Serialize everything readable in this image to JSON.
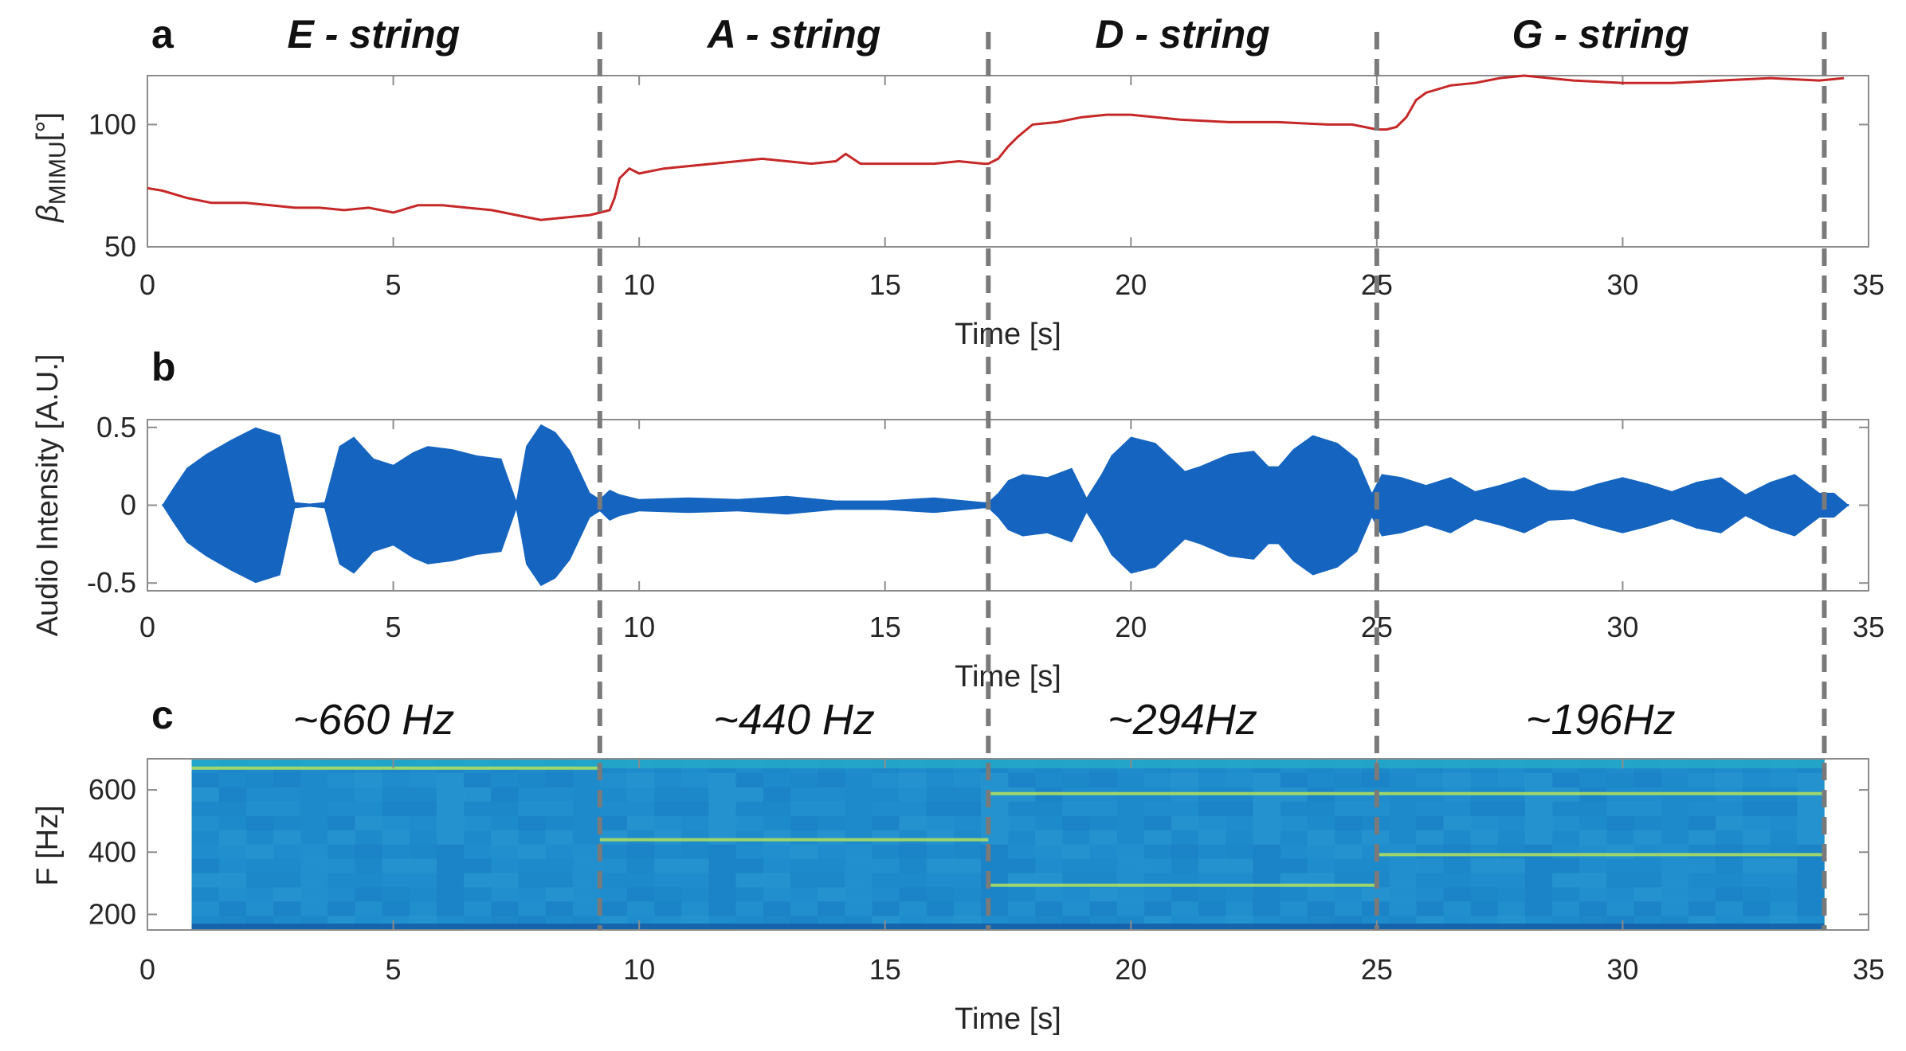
{
  "figure": {
    "section_labels": [
      "E - string",
      "A - string",
      "D - string",
      "G - string"
    ],
    "frequency_labels": [
      "~660 Hz",
      "~440 Hz",
      "~294Hz",
      "~196Hz"
    ],
    "boundaries_s": [
      9.2,
      17.1,
      25.0,
      34.1
    ],
    "boundary_color": "#7a7a7a"
  },
  "chart_data": [
    {
      "panel": "a",
      "type": "line",
      "xlabel": "Time [s]",
      "ylabel": "βMIMU[°]",
      "ylabel_parts": {
        "symbol": "β",
        "subscript": "MIMU",
        "unit": "[°]"
      },
      "xlim": [
        0,
        35
      ],
      "ylim": [
        50,
        120
      ],
      "xticks": [
        0,
        5,
        10,
        15,
        20,
        25,
        30,
        35
      ],
      "yticks": [
        50,
        100
      ],
      "color": "#c62828",
      "series": [
        {
          "x": [
            0,
            0.3,
            0.8,
            1.3,
            2,
            2.5,
            3,
            3.5,
            4,
            4.5,
            5,
            5.5,
            6,
            6.5,
            7,
            7.5,
            8,
            8.5,
            9,
            9.2,
            9.4,
            9.5,
            9.6,
            9.8,
            10,
            10.5,
            11,
            11.5,
            12,
            12.5,
            13,
            13.5,
            14,
            14.2,
            14.5,
            15,
            15.5,
            16,
            16.5,
            17,
            17.1,
            17.3,
            17.5,
            17.7,
            18,
            18.5,
            19,
            19.5,
            20,
            21,
            22,
            23,
            24,
            24.5,
            25,
            25.2,
            25.4,
            25.6,
            25.8,
            26,
            26.5,
            27,
            27.5,
            28,
            29,
            30,
            31,
            32,
            33,
            34,
            34.5
          ],
          "y": [
            74,
            73,
            70,
            68,
            68,
            67,
            66,
            66,
            65,
            66,
            64,
            67,
            67,
            66,
            65,
            63,
            61,
            62,
            63,
            64,
            65,
            70,
            78,
            82,
            80,
            82,
            83,
            84,
            85,
            86,
            85,
            84,
            85,
            88,
            84,
            84,
            84,
            84,
            85,
            84,
            84,
            86,
            91,
            95,
            100,
            101,
            103,
            104,
            104,
            102,
            101,
            101,
            100,
            100,
            98,
            98,
            99,
            103,
            110,
            113,
            116,
            117,
            119,
            120,
            118,
            117,
            117,
            118,
            119,
            118,
            119
          ]
        }
      ]
    },
    {
      "panel": "b",
      "type": "area",
      "xlabel": "Time [s]",
      "ylabel": "Audio Intensity [A.U.]",
      "xlim": [
        0,
        35
      ],
      "ylim": [
        -0.55,
        0.55
      ],
      "xticks": [
        0,
        5,
        10,
        15,
        20,
        25,
        30,
        35
      ],
      "yticks": [
        -0.5,
        0,
        0.5
      ],
      "color": "#1565c0",
      "envelope": {
        "x": [
          0.3,
          0.5,
          0.8,
          1.2,
          1.7,
          2.2,
          2.7,
          3.0,
          3.3,
          3.6,
          3.9,
          4.2,
          4.6,
          5.0,
          5.4,
          5.7,
          6.2,
          6.7,
          7.2,
          7.5,
          7.7,
          8.0,
          8.3,
          8.6,
          9.0,
          9.2,
          9.4,
          9.6,
          10.0,
          11,
          12,
          13,
          14,
          15,
          16,
          17,
          17.1,
          17.3,
          17.5,
          17.8,
          18.3,
          18.8,
          19.1,
          19.4,
          19.6,
          20.0,
          20.5,
          20.9,
          21.1,
          21.4,
          22,
          22.5,
          22.8,
          23.0,
          23.3,
          23.7,
          24.2,
          24.6,
          24.9,
          25.1,
          25.5,
          26,
          26.5,
          27,
          27.5,
          28,
          28.5,
          29,
          29.5,
          30,
          30.5,
          31,
          31.5,
          32,
          32.5,
          33,
          33.5,
          34,
          34.3,
          34.6
        ],
        "amplitude": [
          0.0,
          0.1,
          0.24,
          0.33,
          0.42,
          0.5,
          0.45,
          0.02,
          0.01,
          0.02,
          0.38,
          0.44,
          0.3,
          0.26,
          0.34,
          0.38,
          0.36,
          0.32,
          0.3,
          0.03,
          0.38,
          0.52,
          0.47,
          0.35,
          0.08,
          0.04,
          0.1,
          0.07,
          0.04,
          0.05,
          0.04,
          0.06,
          0.03,
          0.03,
          0.05,
          0.02,
          0.02,
          0.08,
          0.16,
          0.2,
          0.18,
          0.24,
          0.05,
          0.2,
          0.32,
          0.44,
          0.4,
          0.28,
          0.22,
          0.25,
          0.33,
          0.35,
          0.25,
          0.25,
          0.36,
          0.45,
          0.4,
          0.3,
          0.08,
          0.2,
          0.18,
          0.13,
          0.18,
          0.09,
          0.13,
          0.18,
          0.1,
          0.09,
          0.14,
          0.18,
          0.14,
          0.09,
          0.15,
          0.18,
          0.07,
          0.15,
          0.2,
          0.08,
          0.08,
          0.0
        ]
      }
    },
    {
      "panel": "c",
      "type": "heatmap",
      "xlabel": "Time [s]",
      "ylabel": "F [Hz]",
      "xlim": [
        0,
        35
      ],
      "ylim": [
        150,
        700
      ],
      "xticks": [
        0,
        5,
        10,
        15,
        20,
        25,
        30,
        35
      ],
      "yticks": [
        200,
        400,
        600
      ],
      "data_extent_s": [
        0.9,
        34.1
      ],
      "background_color": "#1e88c9",
      "harmonic_color": "#b5e35b",
      "harmonic_lines": [
        {
          "start": 0.9,
          "end": 9.2,
          "freq": 670
        },
        {
          "start": 9.2,
          "end": 17.1,
          "freq": 440
        },
        {
          "start": 17.1,
          "end": 25.0,
          "freq": 294
        },
        {
          "start": 17.1,
          "end": 25.0,
          "freq": 588
        },
        {
          "start": 25.0,
          "end": 34.1,
          "freq": 392
        },
        {
          "start": 25.0,
          "end": 34.1,
          "freq": 588
        }
      ]
    }
  ]
}
